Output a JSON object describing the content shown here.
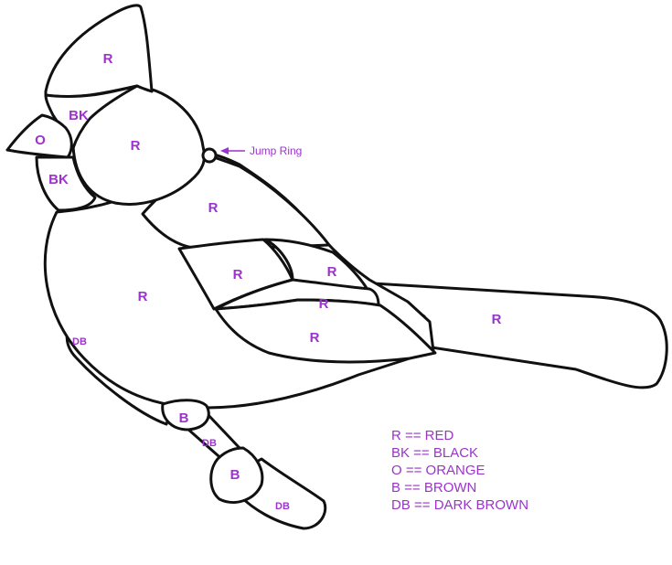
{
  "colors": {
    "label": "#9b33cc",
    "line": "#111111",
    "background": "#ffffff"
  },
  "regions": {
    "crest": "R",
    "mask_upper": "BK",
    "beak": "O",
    "mask_lower": "BK",
    "head": "R",
    "back": "R",
    "breast": "R",
    "wing_upper": "R",
    "wing_tip": "R",
    "wing_mid": "R",
    "wing_lower": "R",
    "tail": "R",
    "branch_left": "DB",
    "foot_upper": "B",
    "branch_mid": "DB",
    "foot_lower": "B",
    "branch_right": "DB"
  },
  "annotation": {
    "jump_ring": "Jump Ring"
  },
  "legend": [
    "R == RED",
    "BK == BLACK",
    "O == ORANGE",
    "B == BROWN",
    "DB == DARK BROWN"
  ]
}
